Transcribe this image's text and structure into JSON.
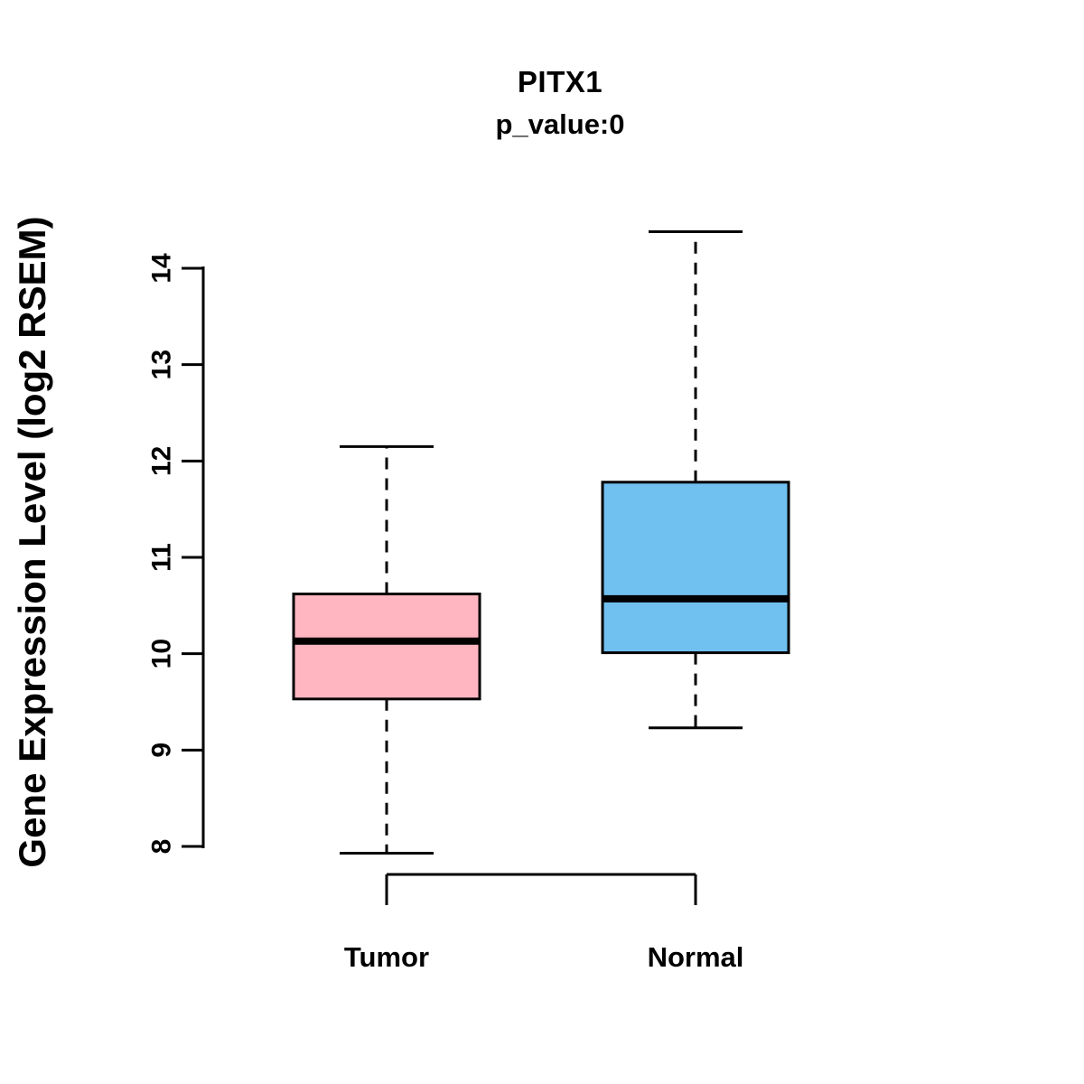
{
  "chart_data": {
    "type": "boxplot",
    "title": "PITX1",
    "subtitle": "p_value:0",
    "ylabel": "Gene Expression Level (log2 RSEM)",
    "xlabel": "",
    "categories": [
      "Tumor",
      "Normal"
    ],
    "yticks": [
      8,
      9,
      10,
      11,
      12,
      13,
      14
    ],
    "ylim": [
      7.6,
      14.6
    ],
    "grid": false,
    "legend": "none",
    "comparison_bracket": true,
    "colors": {
      "tumor_fill": "#FFB6C1",
      "normal_fill": "#70C0F0",
      "stroke": "#000000",
      "background": "#FFFFFF"
    },
    "series": [
      {
        "name": "Tumor",
        "color": "#FFB6C1",
        "whisker_low": 7.93,
        "q1": 9.53,
        "median": 10.13,
        "q3": 10.62,
        "whisker_high": 12.15
      },
      {
        "name": "Normal",
        "color": "#70C0F0",
        "whisker_low": 9.23,
        "q1": 10.01,
        "median": 10.57,
        "q3": 11.78,
        "whisker_high": 14.38
      }
    ]
  }
}
